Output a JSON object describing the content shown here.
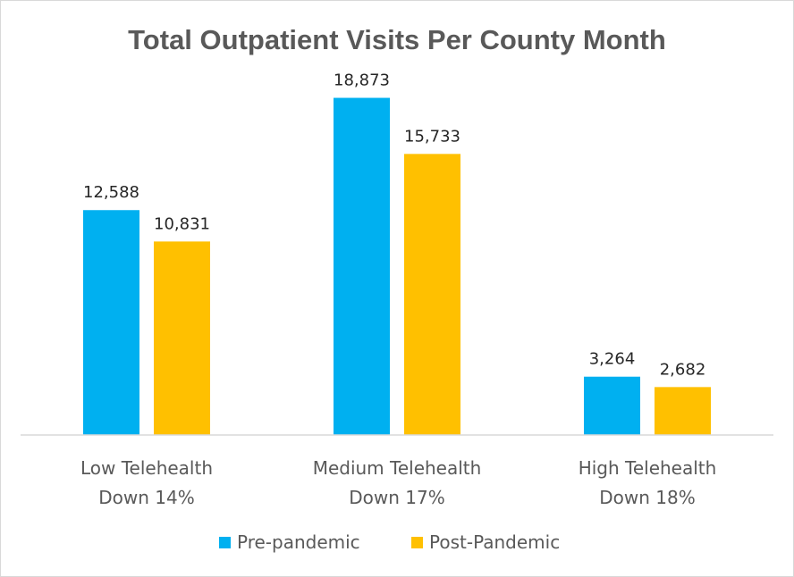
{
  "chart_data": {
    "type": "bar",
    "title": "Total Outpatient Visits Per County Month",
    "categories": [
      [
        "Low Telehealth",
        "Down 14%"
      ],
      [
        "Medium Telehealth",
        "Down 17%"
      ],
      [
        "High Telehealth",
        "Down 18%"
      ]
    ],
    "series": [
      {
        "name": "Pre-pandemic",
        "color": "#00B0F0",
        "values": [
          12588,
          18873,
          3264
        ],
        "labels": [
          "12,588",
          "18,873",
          "3,264"
        ]
      },
      {
        "name": "Post-Pandemic",
        "color": "#FFC000",
        "values": [
          10831,
          15733,
          2682
        ],
        "labels": [
          "10,831",
          "15,733",
          "2,682"
        ]
      }
    ],
    "ylim": [
      0,
      20000
    ],
    "grid": false,
    "legend": "bottom",
    "xlabel": "",
    "ylabel": ""
  }
}
